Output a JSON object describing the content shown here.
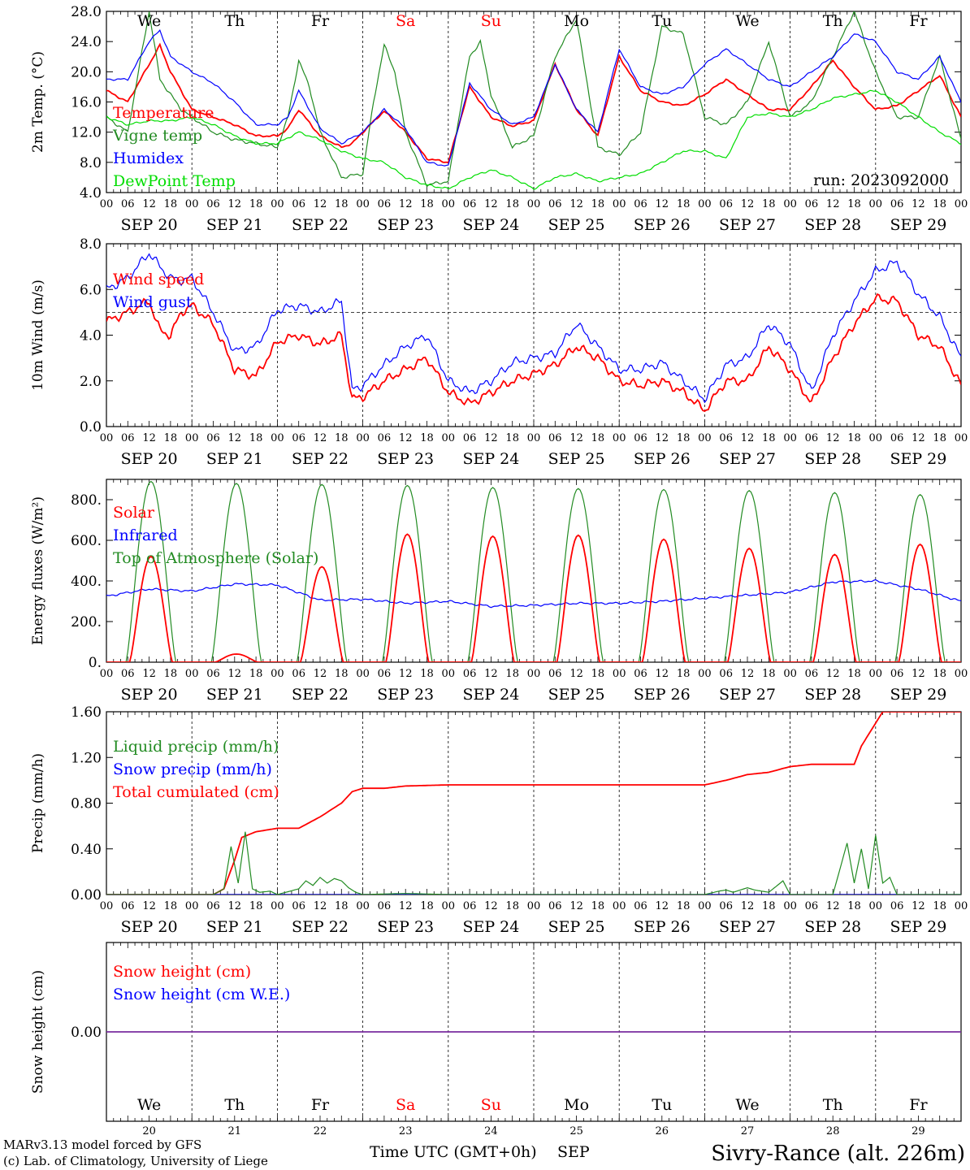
{
  "colors": {
    "temperature": "#ff0000",
    "vigne": "#228b22",
    "humidex": "#0000ff",
    "dewpoint": "#00dd00",
    "weekend": "#ff0000",
    "weekday": "#000000",
    "footer_left": "#cc0000",
    "footer_right": "#3333ff"
  },
  "weekdays": [
    {
      "label": "We",
      "weekend": false
    },
    {
      "label": "Th",
      "weekend": false
    },
    {
      "label": "Fr",
      "weekend": false
    },
    {
      "label": "Sa",
      "weekend": true
    },
    {
      "label": "Su",
      "weekend": true
    },
    {
      "label": "Mo",
      "weekend": false
    },
    {
      "label": "Tu",
      "weekend": false
    },
    {
      "label": "We",
      "weekend": false
    },
    {
      "label": "Th",
      "weekend": false
    },
    {
      "label": "Fr",
      "weekend": false
    }
  ],
  "dates": [
    "SEP 20",
    "SEP 21",
    "SEP 22",
    "SEP 23",
    "SEP 24",
    "SEP 25",
    "SEP 26",
    "SEP 27",
    "SEP 28",
    "SEP 29"
  ],
  "hour_ticks": [
    "00",
    "06",
    "12",
    "18"
  ],
  "bottom_day_numbers": [
    "20",
    "21",
    "22",
    "23",
    "24",
    "25",
    "26",
    "27",
    "28",
    "29"
  ],
  "xaxis_title": "Time UTC (GMT+0h)",
  "month_label": "SEP",
  "footer": {
    "model": "MARv3.13 model forced by GFS",
    "credit": "(c) Lab. of Climatology, University of Liege",
    "station": "Sivry-Rance (alt. 226m)"
  },
  "chart_data": [
    {
      "type": "line",
      "ylabel": "2m Temp. (°C)",
      "ylim": [
        4,
        28
      ],
      "yticks": [
        "4.0",
        "8.0",
        "12.0",
        "16.0",
        "20.0",
        "24.0",
        "28.0"
      ],
      "annotation": "run: 2023092000",
      "x_unit": "hours since SEP 20 00 UTC",
      "series": [
        {
          "name": "Temperature",
          "color": "#ff0000",
          "x": [
            0,
            6,
            12,
            15,
            18,
            24,
            30,
            36,
            42,
            48,
            51,
            54,
            60,
            66,
            69,
            72,
            78,
            84,
            90,
            96,
            102,
            108,
            114,
            120,
            126,
            132,
            138,
            144,
            150,
            156,
            162,
            168,
            174,
            180,
            186,
            192,
            198,
            204,
            210,
            216,
            222,
            228,
            234,
            240
          ],
          "y": [
            17.5,
            16,
            21,
            23.5,
            20,
            15,
            14,
            13,
            11.5,
            11.5,
            12.5,
            15,
            11.5,
            10,
            10.5,
            12,
            14.8,
            12,
            8.5,
            8,
            18,
            14,
            12.8,
            13.5,
            21,
            15,
            11.5,
            22,
            17.5,
            16,
            15.5,
            17,
            19,
            17,
            15,
            15,
            18,
            21.5,
            18,
            15,
            15.5,
            17.5,
            19.5,
            14
          ]
        },
        {
          "name": "Vigne temp",
          "color": "#228b22",
          "x": [
            0,
            6,
            9,
            12,
            15,
            18,
            21,
            24,
            30,
            36,
            42,
            48,
            51,
            54,
            57,
            60,
            66,
            72,
            75,
            78,
            81,
            84,
            90,
            96,
            99,
            102,
            105,
            108,
            114,
            120,
            126,
            132,
            138,
            144,
            150,
            156,
            162,
            168,
            174,
            180,
            186,
            192,
            198,
            204,
            210,
            216,
            222,
            228,
            234,
            240
          ],
          "y": [
            14,
            12,
            20,
            28,
            19,
            17,
            15,
            14,
            12,
            11,
            10.5,
            10,
            14,
            21.5,
            18,
            12,
            6,
            6.5,
            16,
            23.5,
            20,
            12,
            5,
            5.5,
            14,
            22,
            24,
            17,
            10,
            11.5,
            22,
            27,
            10,
            9,
            12,
            26,
            25,
            14,
            13,
            16,
            24,
            14,
            16,
            22,
            28,
            20,
            14,
            14,
            22,
            11
          ]
        },
        {
          "name": "Humidex",
          "color": "#0000ff",
          "x": [
            0,
            6,
            12,
            15,
            18,
            24,
            30,
            36,
            42,
            48,
            51,
            54,
            60,
            66,
            72,
            78,
            84,
            90,
            96,
            102,
            108,
            114,
            120,
            126,
            132,
            138,
            144,
            150,
            156,
            162,
            168,
            174,
            180,
            186,
            192,
            198,
            204,
            210,
            216,
            222,
            228,
            234,
            240
          ],
          "y": [
            19,
            19,
            24,
            25.5,
            22,
            20,
            18.5,
            16,
            13,
            13,
            14,
            17.5,
            12.5,
            10.5,
            12,
            15,
            12.5,
            8,
            7.5,
            18.5,
            15,
            13,
            14,
            21,
            15,
            12,
            23,
            18,
            17,
            18,
            21,
            23,
            21,
            19,
            18,
            20,
            22,
            25,
            24,
            20,
            19,
            22,
            16
          ]
        },
        {
          "name": "DewPoint Temp",
          "color": "#00dd00",
          "x": [
            0,
            6,
            12,
            18,
            24,
            30,
            36,
            42,
            48,
            54,
            60,
            66,
            72,
            78,
            84,
            90,
            96,
            102,
            108,
            114,
            120,
            126,
            132,
            138,
            144,
            150,
            156,
            162,
            168,
            174,
            180,
            186,
            192,
            198,
            204,
            210,
            216,
            222,
            228,
            234,
            240
          ],
          "y": [
            14,
            13,
            13.5,
            13.5,
            14,
            13,
            11.5,
            10.5,
            10.5,
            12,
            11,
            9.5,
            8.5,
            8,
            6,
            5,
            4.5,
            6,
            7,
            6,
            4.5,
            6,
            6.5,
            5.5,
            6,
            6.5,
            8,
            9.5,
            9.5,
            8.5,
            14,
            14.5,
            14,
            15,
            16.5,
            17,
            17.5,
            16,
            14,
            12,
            10.5
          ]
        }
      ]
    },
    {
      "type": "line",
      "ylabel": "10m Wind (m/s)",
      "ylim": [
        0,
        8
      ],
      "yticks": [
        "0.0",
        "2.0",
        "4.0",
        "6.0",
        "8.0"
      ],
      "reference_line": 5.0,
      "series": [
        {
          "name": "Wind speed",
          "color": "#ff0000",
          "x": [
            0,
            6,
            12,
            15,
            18,
            21,
            24,
            30,
            36,
            42,
            48,
            54,
            60,
            66,
            69,
            72,
            78,
            84,
            90,
            96,
            102,
            108,
            114,
            120,
            126,
            132,
            138,
            144,
            150,
            156,
            162,
            168,
            174,
            180,
            186,
            192,
            198,
            204,
            210,
            216,
            222,
            228,
            234,
            240
          ],
          "y": [
            4.6,
            5,
            5.5,
            4.2,
            4,
            5,
            5.3,
            4.5,
            2.5,
            2.2,
            3.7,
            4,
            3.6,
            4,
            1.2,
            1.3,
            2,
            2.5,
            3,
            1.5,
            1,
            1.5,
            2,
            2.3,
            2.7,
            3.5,
            3,
            2,
            1.8,
            2,
            1.5,
            0.7,
            2,
            2,
            3.5,
            2.5,
            1,
            3,
            4.5,
            5.6,
            5.5,
            4,
            3.5,
            1.8
          ]
        },
        {
          "name": "Wind gust",
          "color": "#0000ff",
          "x": [
            0,
            6,
            12,
            15,
            18,
            21,
            24,
            30,
            36,
            42,
            48,
            54,
            60,
            66,
            69,
            72,
            78,
            84,
            90,
            96,
            102,
            108,
            114,
            120,
            126,
            132,
            138,
            144,
            150,
            156,
            162,
            168,
            174,
            180,
            186,
            192,
            198,
            204,
            210,
            216,
            222,
            228,
            234,
            240
          ],
          "y": [
            6,
            6.5,
            7.6,
            7,
            6.5,
            6.4,
            6.5,
            5,
            3.3,
            3.5,
            5.1,
            5.3,
            5,
            5.5,
            1.6,
            1.8,
            2.7,
            3.5,
            4,
            2,
            1.5,
            2,
            2.8,
            3,
            3.2,
            4.5,
            3.5,
            2.5,
            2.5,
            2.8,
            2,
            1.2,
            2.7,
            3,
            4.5,
            3.6,
            1.5,
            4,
            5.5,
            6.8,
            7.2,
            5.8,
            4.8,
            3
          ]
        }
      ]
    },
    {
      "type": "line",
      "ylabel": "Energy fluxes (W/m²)",
      "ylim": [
        0,
        900
      ],
      "yticks": [
        "0.",
        "200.",
        "400.",
        "600.",
        "800."
      ],
      "series": [
        {
          "name": "Solar",
          "color": "#ff0000",
          "peaks": [
            520,
            40,
            470,
            630,
            620,
            625,
            605,
            560,
            530,
            580
          ]
        },
        {
          "name": "Infrared",
          "color": "#0000ff",
          "x": [
            0,
            12,
            24,
            36,
            48,
            60,
            72,
            84,
            96,
            108,
            120,
            132,
            144,
            156,
            168,
            180,
            192,
            204,
            216,
            228,
            240
          ],
          "y": [
            325,
            360,
            350,
            385,
            380,
            305,
            310,
            290,
            300,
            275,
            280,
            290,
            290,
            300,
            315,
            330,
            345,
            395,
            400,
            360,
            300
          ]
        },
        {
          "name": "Top of Atmosphere (Solar)",
          "color": "#228b22",
          "peaks": [
            890,
            880,
            875,
            870,
            860,
            855,
            850,
            845,
            835,
            825
          ]
        }
      ]
    },
    {
      "type": "line",
      "ylabel": "Precip (mm/h)",
      "ylim": [
        0,
        1.6
      ],
      "yticks": [
        "0.00",
        "0.40",
        "0.80",
        "1.20",
        "1.60"
      ],
      "series": [
        {
          "name": "Liquid precip (mm/h)",
          "color": "#228b22",
          "x": [
            0,
            30,
            33,
            35,
            37,
            39,
            41,
            43,
            46,
            48,
            54,
            56,
            58,
            60,
            62,
            64,
            66,
            68,
            70,
            72,
            84,
            96,
            120,
            168,
            172,
            174,
            176,
            178,
            180,
            182,
            186,
            190,
            192,
            204,
            208,
            210,
            212,
            214,
            216,
            218,
            220,
            222,
            240
          ],
          "y": [
            0,
            0,
            0.05,
            0.42,
            0.1,
            0.55,
            0.05,
            0.02,
            0.03,
            0,
            0.05,
            0.12,
            0.08,
            0.15,
            0.1,
            0.14,
            0.12,
            0.06,
            0.02,
            0,
            0.01,
            0,
            0,
            0,
            0.03,
            0.04,
            0.02,
            0.04,
            0.06,
            0.04,
            0.02,
            0.12,
            0,
            0,
            0.45,
            0.1,
            0.4,
            0.05,
            0.52,
            0.1,
            0.15,
            0,
            0
          ]
        },
        {
          "name": "Snow precip (mm/h)",
          "color": "#0000ff",
          "x": [
            0,
            240
          ],
          "y": [
            0,
            0
          ]
        },
        {
          "name": "Total cumulated (cm)",
          "color": "#ff0000",
          "x": [
            0,
            30,
            33,
            36,
            38,
            42,
            48,
            54,
            60,
            66,
            69,
            72,
            78,
            84,
            96,
            120,
            144,
            168,
            174,
            180,
            186,
            192,
            198,
            204,
            210,
            212,
            214,
            218,
            240
          ],
          "y": [
            0,
            0,
            0.05,
            0.3,
            0.5,
            0.55,
            0.58,
            0.58,
            0.68,
            0.8,
            0.9,
            0.93,
            0.93,
            0.95,
            0.96,
            0.96,
            0.96,
            0.96,
            1.0,
            1.05,
            1.07,
            1.12,
            1.14,
            1.14,
            1.14,
            1.3,
            1.4,
            1.6,
            1.6
          ]
        }
      ]
    },
    {
      "type": "line",
      "ylabel": "Snow height (cm)",
      "yticks": [
        "0.00"
      ],
      "series": [
        {
          "name": "Snow height (cm)",
          "color": "#ff0000",
          "x": [
            0,
            240
          ],
          "y": [
            0,
            0
          ]
        },
        {
          "name": "Snow height (cm W.E.)",
          "color": "#0000ff",
          "x": [
            0,
            240
          ],
          "y": [
            0,
            0
          ]
        }
      ]
    }
  ]
}
